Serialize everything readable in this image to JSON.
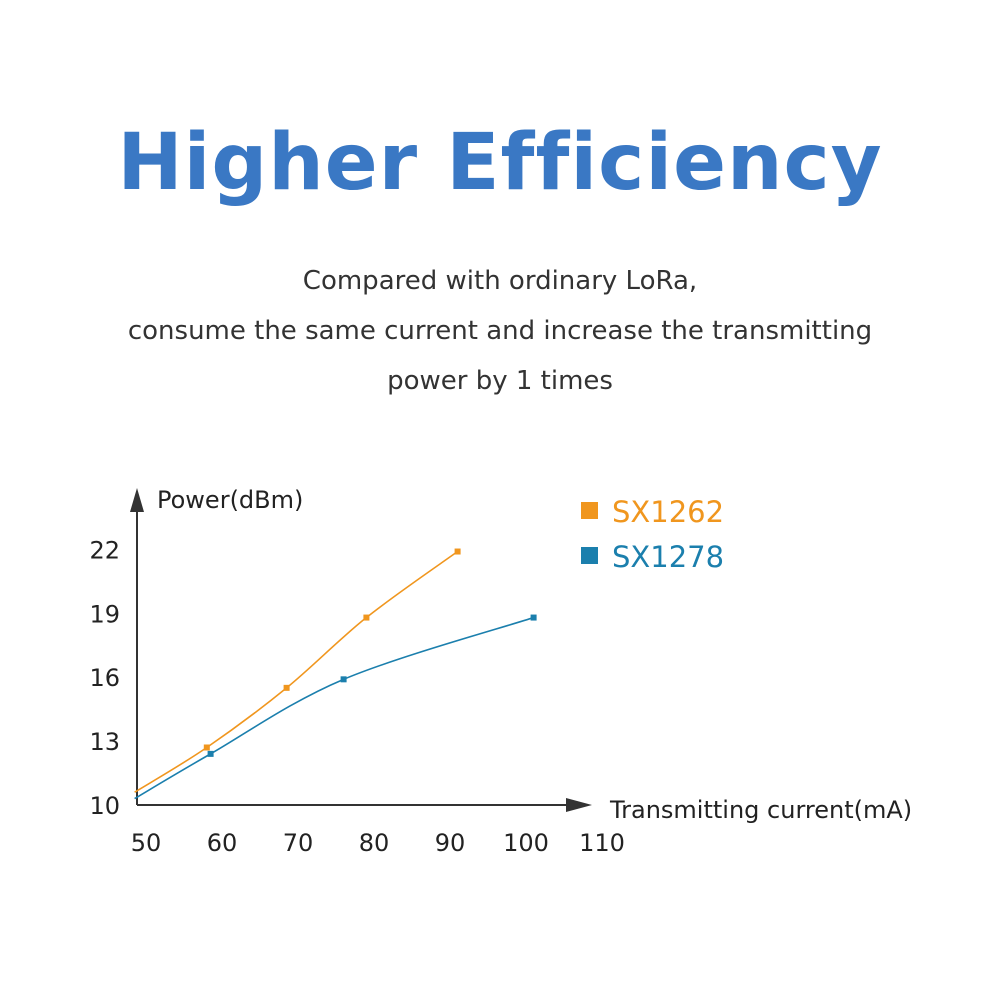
{
  "header": {
    "title": "Higher Efficiency",
    "subtitle_lines": [
      "Compared with ordinary LoRa,",
      "consume the same current and increase the transmitting",
      "power by 1 times"
    ]
  },
  "chart_data": {
    "type": "line",
    "xlabel": "Transmitting current(mA)",
    "ylabel": "Power(dBm)",
    "xlim": [
      50,
      110
    ],
    "ylim": [
      10,
      22
    ],
    "x_ticks": [
      "50",
      "60",
      "70",
      "80",
      "90",
      "100",
      "110"
    ],
    "y_ticks": [
      "10",
      "13",
      "16",
      "19",
      "22"
    ],
    "grid": false,
    "legend_position": "top-right",
    "series": [
      {
        "name": "SX1262",
        "color": "#f0961e",
        "x": [
          48.5,
          58,
          68.5,
          79,
          91
        ],
        "y": [
          10.6,
          12.7,
          15.5,
          18.8,
          21.9
        ],
        "markers": [
          1,
          2,
          3,
          4
        ]
      },
      {
        "name": "SX1278",
        "color": "#1b7fad",
        "x": [
          48.5,
          58.5,
          76,
          101
        ],
        "y": [
          10.3,
          12.4,
          15.9,
          18.8
        ],
        "markers": [
          1,
          2,
          3
        ]
      }
    ]
  }
}
